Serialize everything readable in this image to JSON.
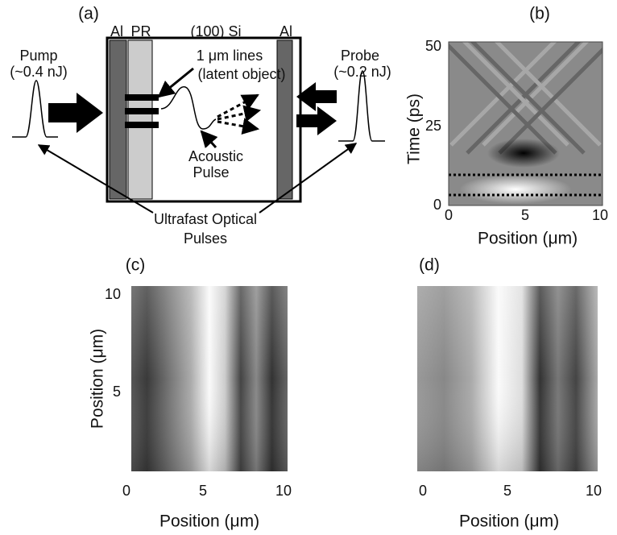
{
  "panel_a": {
    "label": "(a)",
    "layers": [
      "Al",
      "PR",
      "(100) Si",
      "Al"
    ],
    "pump": "Pump",
    "pump_energy": "(~0.4 nJ)",
    "probe": "Probe",
    "probe_energy": "(~0.2 nJ)",
    "lines": "1 μm lines",
    "latent": "(latent object)",
    "acoustic": [
      "Acoustic",
      "Pulse"
    ],
    "optical": [
      "Ultrafast Optical",
      "Pulses"
    ]
  },
  "panel_b": {
    "label": "(b)",
    "ylabel": "Time (ps)",
    "xlabel": "Position (μm)",
    "xticks": [
      0,
      5,
      10
    ],
    "yticks": [
      0,
      25,
      50
    ]
  },
  "panel_c": {
    "label": "(c)",
    "ylabel": "Position (μm)",
    "xlabel": "Position (μm)",
    "xticks": [
      0,
      5,
      10
    ],
    "yticks": [
      5,
      10
    ]
  },
  "panel_d": {
    "label": "(d)",
    "xlabel": "Position (μm)",
    "xticks": [
      0,
      5,
      10
    ]
  }
}
